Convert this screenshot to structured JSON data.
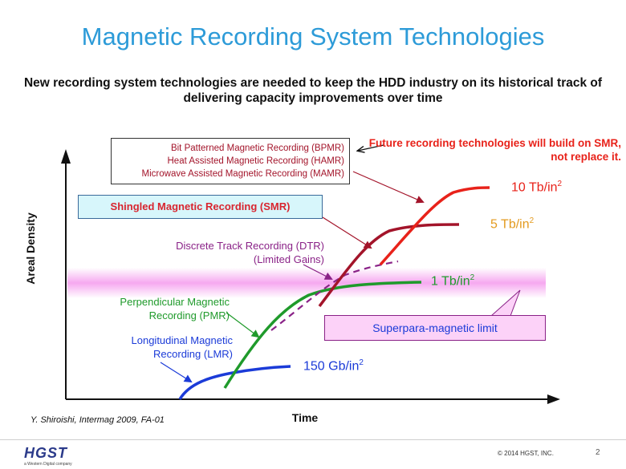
{
  "title": "Magnetic Recording System Technologies",
  "subtitle": "New recording system technologies are needed to keep the HDD industry on its historical track of delivering capacity improvements over time",
  "future_note": "Future recording technologies will build on SMR, not replace it.",
  "future_technologies": [
    "Bit Patterned Magnetic Recording (BPMR)",
    "Heat Assisted Magnetic Recording (HAMR)",
    "Microwave Assisted Magnetic Recording (MAMR)"
  ],
  "smr_label": "Shingled Magnetic Recording (SMR)",
  "dtr_label": [
    "Discrete Track Recording (DTR)",
    "(Limited Gains)"
  ],
  "pmr_label": [
    "Perpendicular Magnetic",
    "Recording (PMR)"
  ],
  "lmr_label": [
    "Longitudinal Magnetic",
    "Recording  (LMR)"
  ],
  "densities": {
    "d10t": {
      "value": "10 Tb/in",
      "sup": "2"
    },
    "d5t": {
      "value": "5 Tb/in",
      "sup": "2"
    },
    "d1t": {
      "value": "1 Tb/in",
      "sup": "2"
    },
    "d150g": {
      "value": "150 Gb/in",
      "sup": "2"
    }
  },
  "superpara_label": "Superpara-magnetic limit",
  "y_axis": "Areal Density",
  "x_axis": "Time",
  "citation": "Y. Shiroishi, Intermag 2009, FA-01",
  "logo": {
    "name": "HGST",
    "tagline": "a Western Digital company"
  },
  "copyright": "© 2014  HGST, INC.",
  "page_number": "2",
  "colors": {
    "title": "#2d9bd8",
    "lmr": "#1b3bd8",
    "pmr": "#1f9a2b",
    "dtr": "#8a2287",
    "smr": "#a3142a",
    "future": "#e8221a",
    "limit_band": "#fcd2f8"
  }
}
